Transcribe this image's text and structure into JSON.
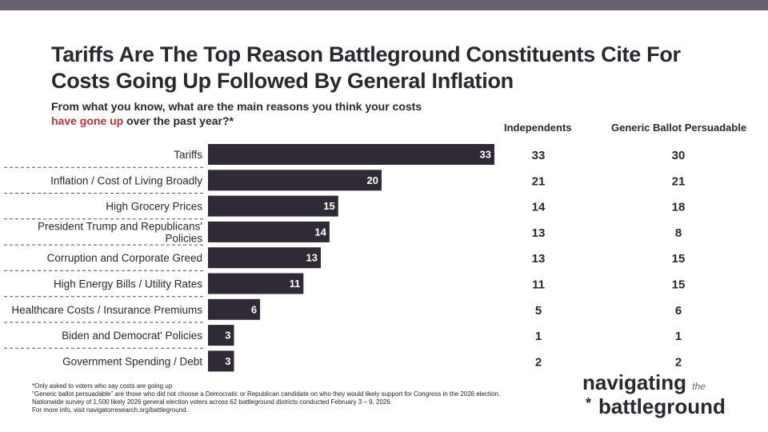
{
  "title": "Tariffs Are The Top Reason Battleground Constituents Cite For Costs Going Up Followed By General Inflation",
  "question": {
    "before": "From what you know, what are the main reasons you think your costs ",
    "highlight": "have gone up",
    "after": " over the past year?*"
  },
  "colors": {
    "bar": "#2f2a35",
    "highlight": "#b8343a",
    "topbar": "#686170"
  },
  "chart_data": {
    "type": "bar",
    "orientation": "horizontal",
    "categories": [
      "Tariffs",
      "Inflation / Cost of Living Broadly",
      "High Grocery Prices",
      "President Trump and Republicans' Policies",
      "Corruption and Corporate Greed",
      "High Energy Bills / Utility Rates",
      "Healthcare Costs / Insurance Premiums",
      "Biden and Democrat' Policies",
      "Government Spending / Debt"
    ],
    "values": [
      33,
      20,
      15,
      14,
      13,
      11,
      6,
      3,
      3
    ],
    "table_columns": [
      {
        "name": "Independents",
        "values": [
          33,
          21,
          14,
          13,
          13,
          11,
          5,
          1,
          2
        ]
      },
      {
        "name": "Generic Ballot Persuadable",
        "values": [
          30,
          21,
          18,
          8,
          15,
          15,
          6,
          1,
          2
        ]
      }
    ],
    "xlim": [
      0,
      33
    ]
  },
  "footnotes": [
    "*Only asked to voters who say costs are going up",
    "\"Generic ballot persuadable\" are those who did not choose a Democratic or Republican candidate on who they would likely support for Congress in the 2026 election.",
    "Nationwide survey of 1,500 likely 2026 general election voters across 62 battleground districts conducted February 3 – 9, 2026.",
    "For more info, visit navigatorresearch.org/battleground."
  ],
  "logo": {
    "line1": "navigating",
    "the": "the",
    "line2": "battleground",
    "star": "*"
  }
}
